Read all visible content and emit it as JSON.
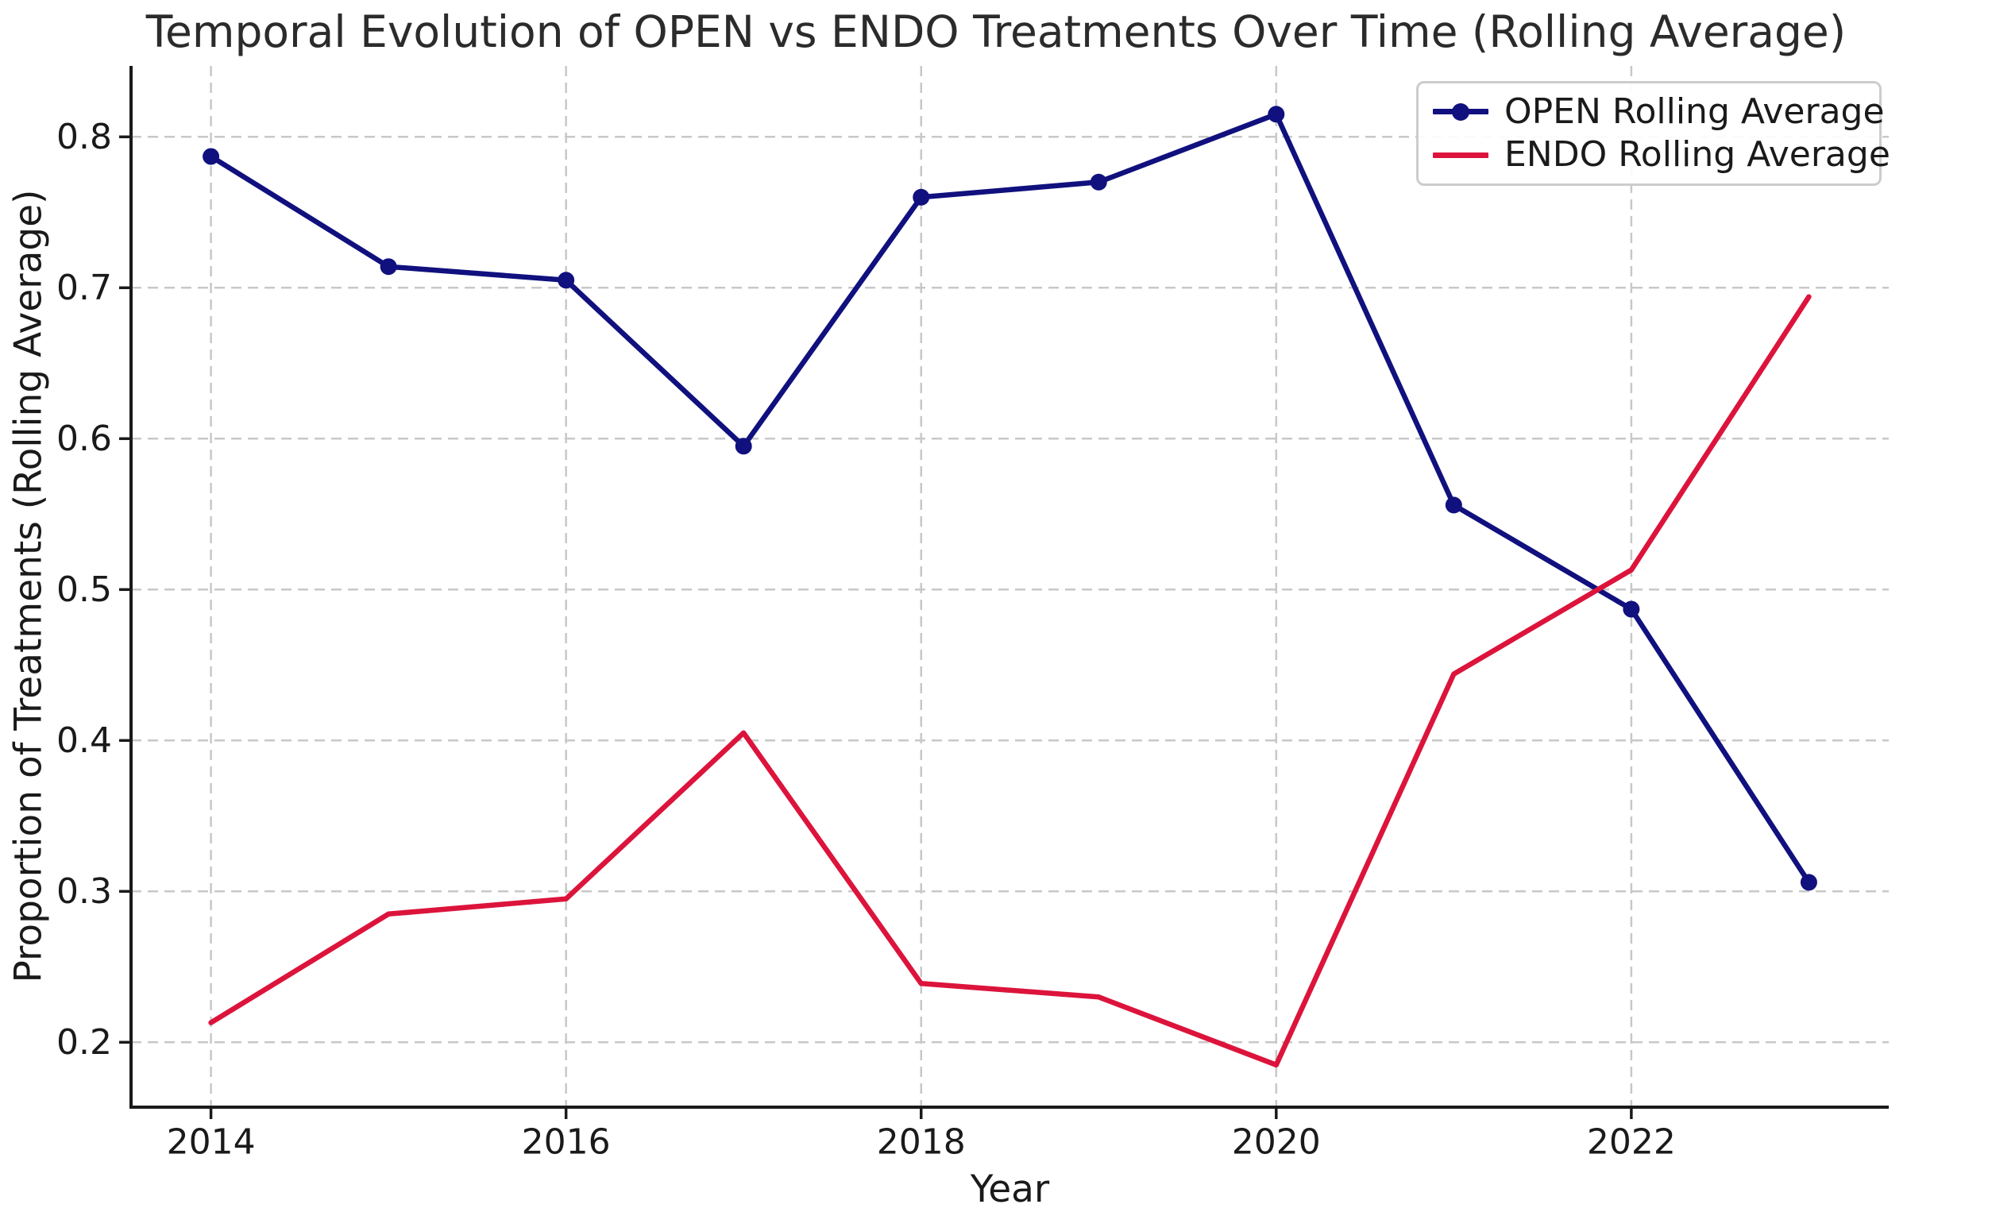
{
  "figure": {
    "title": "Temporal Evolution of OPEN vs ENDO Treatments Over Time (Rolling Average)",
    "xlabel": "Year",
    "ylabel": "Proportion of Treatments (Rolling Average)"
  },
  "chart_data": {
    "type": "line",
    "title": "Temporal Evolution of OPEN vs ENDO Treatments Over Time (Rolling Average)",
    "xlabel": "Year",
    "ylabel": "Proportion of Treatments (Rolling Average)",
    "x": [
      2014,
      2015,
      2016,
      2017,
      2018,
      2019,
      2020,
      2021,
      2022,
      2023
    ],
    "series": [
      {
        "name": "OPEN Rolling Average",
        "color": "#10107e",
        "marker": "circle",
        "values": [
          0.787,
          0.714,
          0.705,
          0.595,
          0.76,
          0.77,
          0.815,
          0.556,
          0.487,
          0.306
        ]
      },
      {
        "name": "ENDO Rolling Average",
        "color": "#dc143c",
        "marker": "none",
        "values": [
          0.213,
          0.285,
          0.295,
          0.405,
          0.239,
          0.23,
          0.185,
          0.444,
          0.513,
          0.694
        ]
      }
    ],
    "x_ticks": [
      2014,
      2016,
      2018,
      2020,
      2022
    ],
    "x_tick_labels": [
      "2014",
      "2016",
      "2018",
      "2020",
      "2022"
    ],
    "y_ticks": [
      0.2,
      0.3,
      0.4,
      0.5,
      0.6,
      0.7,
      0.8
    ],
    "y_tick_labels": [
      "0.2",
      "0.3",
      "0.4",
      "0.5",
      "0.6",
      "0.7",
      "0.8"
    ],
    "x_range": [
      2013.55,
      2023.45
    ],
    "y_range": [
      0.157,
      0.847
    ],
    "grid": true,
    "grid_color": "#c8c8c8",
    "spine_color": "#1a1a1a",
    "tick_label_color": "#1a1a1a",
    "legend_position": "upper right"
  }
}
